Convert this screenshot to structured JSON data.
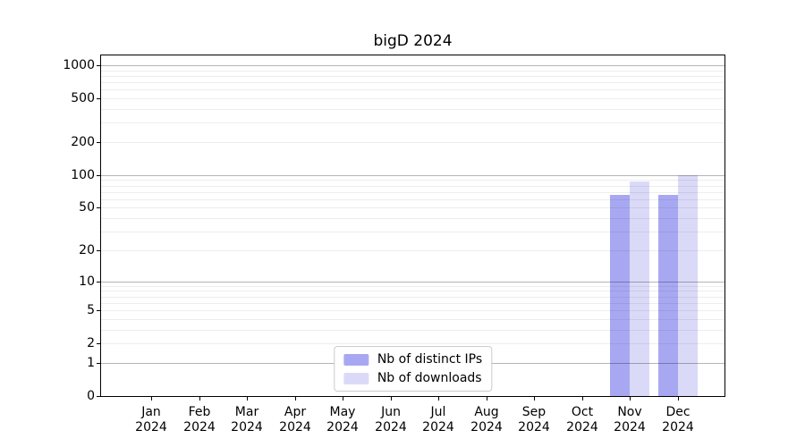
{
  "chart_data": {
    "type": "bar",
    "title": "bigD 2024",
    "categories": [
      "Jan 2024",
      "Feb 2024",
      "Mar 2024",
      "Apr 2024",
      "May 2024",
      "Jun 2024",
      "Jul 2024",
      "Aug 2024",
      "Sep 2024",
      "Oct 2024",
      "Nov 2024",
      "Dec 2024"
    ],
    "series": [
      {
        "name": "Nb of distinct IPs",
        "color": "#a8a8f2",
        "values": [
          0,
          0,
          0,
          0,
          0,
          0,
          0,
          0,
          0,
          0,
          66,
          66
        ]
      },
      {
        "name": "Nb of downloads",
        "color": "#dadaf8",
        "values": [
          0,
          0,
          0,
          0,
          0,
          0,
          0,
          0,
          0,
          0,
          88,
          100
        ]
      }
    ],
    "y_ticks": [
      0,
      1,
      2,
      5,
      10,
      20,
      50,
      100,
      200,
      500,
      1000
    ],
    "y_scale": "log1p",
    "ylim": [
      0,
      1230
    ],
    "xlabel": "",
    "ylabel": "",
    "grid": true,
    "legend_position": "lower center"
  },
  "colors": {
    "figure_background": "#ffffff",
    "bar_distinct_ips": "#a8a8f2",
    "bar_downloads": "#dadaf8",
    "grid_major": "#0000004a",
    "grid_minor": "#00000012",
    "axis_spine": "#000000",
    "legend_border": "#cccccc",
    "text": "#000000"
  }
}
